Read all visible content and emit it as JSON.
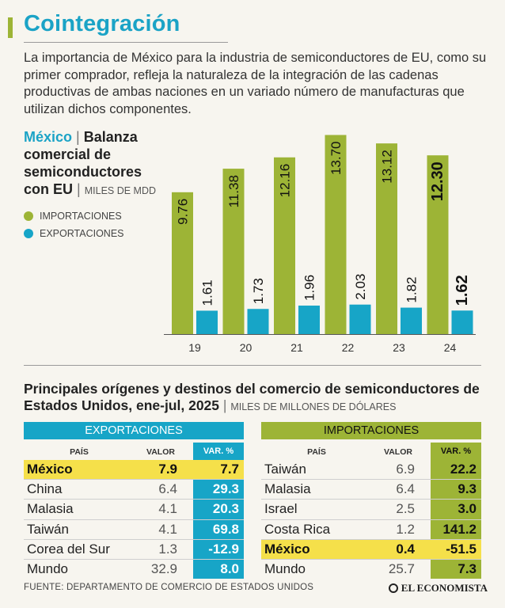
{
  "header": {
    "title": "Cointegración",
    "intro": "La importancia de México para la industria de semiconductores de EU, como su primer comprador, refleja la naturaleza de la integración de las cadenas productivas de ambas naciones en un variado número de manufacturas que utilizan dichos componentes."
  },
  "colors": {
    "green": "#9db436",
    "blue": "#17a5c7",
    "highlight": "#f5e04a",
    "title": "#1ba3c6"
  },
  "chart_legend": {
    "country": "México",
    "sep": "|",
    "title": "Balanza comercial de semiconductores con EU",
    "units": "MILES DE MDD",
    "imports_label": "IMPORTACIONES",
    "exports_label": "EXPORTACIONES"
  },
  "chart_data": {
    "type": "bar",
    "title": "México | Balanza comercial de semiconductores con EU",
    "ylabel": "Miles de MDD",
    "categories": [
      "19",
      "20",
      "21",
      "22",
      "23",
      "24"
    ],
    "series": [
      {
        "name": "IMPORTACIONES",
        "color": "#9db436",
        "values": [
          9.76,
          11.38,
          12.16,
          13.7,
          13.12,
          12.3
        ],
        "labels": [
          "9.76",
          "11.38",
          "12.16",
          "13.70",
          "13.12",
          "12.30"
        ]
      },
      {
        "name": "EXPORTACIONES",
        "color": "#17a5c7",
        "values": [
          1.61,
          1.73,
          1.96,
          2.03,
          1.82,
          1.62
        ],
        "labels": [
          "1.61",
          "1.73",
          "1.96",
          "2.03",
          "1.82",
          "1.62"
        ]
      }
    ],
    "ylim": [
      0,
      14
    ],
    "emphasized_category": "24"
  },
  "tables": {
    "title": "Principales orígenes y destinos del comercio de semiconductores de Estados Unidos, ene-jul, 2025",
    "sep": "|",
    "units": "MILES DE MILLONES DE DÓLARES",
    "col_pais": "PAÍS",
    "col_valor": "VALOR",
    "col_var": "VAR. %",
    "exports": {
      "heading": "EXPORTACIONES",
      "rows": [
        {
          "pais": "México",
          "valor": "7.9",
          "var": "7.7"
        },
        {
          "pais": "China",
          "valor": "6.4",
          "var": "29.3"
        },
        {
          "pais": "Malasia",
          "valor": "4.1",
          "var": "20.3"
        },
        {
          "pais": "Taiwán",
          "valor": "4.1",
          "var": "69.8"
        },
        {
          "pais": "Corea del Sur",
          "valor": "1.3",
          "var": "-12.9"
        },
        {
          "pais": "Mundo",
          "valor": "32.9",
          "var": "8.0"
        }
      ]
    },
    "imports": {
      "heading": "IMPORTACIONES",
      "rows": [
        {
          "pais": "Taiwán",
          "valor": "6.9",
          "var": "22.2"
        },
        {
          "pais": "Malasia",
          "valor": "6.4",
          "var": "9.3"
        },
        {
          "pais": "Israel",
          "valor": "2.5",
          "var": "3.0"
        },
        {
          "pais": "Costa Rica",
          "valor": "1.2",
          "var": "141.2"
        },
        {
          "pais": "México",
          "valor": "0.4",
          "var": "-51.5"
        },
        {
          "pais": "Mundo",
          "valor": "25.7",
          "var": "7.3"
        }
      ]
    }
  },
  "footer": {
    "source": "FUENTE: DEPARTAMENTO DE COMERCIO DE ESTADOS UNIDOS",
    "brand": "EL ECONOMISTA"
  }
}
